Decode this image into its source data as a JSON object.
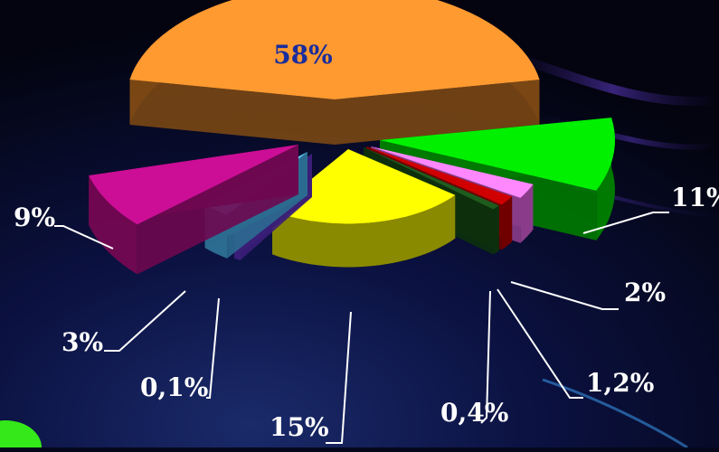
{
  "chart_data": {
    "type": "pie",
    "title": "",
    "three_d": true,
    "exploded": true,
    "label_style": "leader-lines",
    "slices": [
      {
        "label": "58%",
        "value": 58,
        "color": "#ff9a30",
        "side": "#7a4714"
      },
      {
        "label": "11%",
        "value": 11,
        "color": "#00f000",
        "side": "#007a00"
      },
      {
        "label": "2%",
        "value": 2,
        "color": "#ff88ff",
        "side": "#8a3c8a"
      },
      {
        "label": "1,2%",
        "value": 1.2,
        "color": "#d00000",
        "side": "#700000"
      },
      {
        "label": "0,4%",
        "value": 0.4,
        "color": "#1e5c1e",
        "side": "#0c300c"
      },
      {
        "label": "15%",
        "value": 15,
        "color": "#ffff00",
        "side": "#8a8a00"
      },
      {
        "label": "0,1%",
        "value": 0.1,
        "color": "#6a3cc8",
        "side": "#3a1e78"
      },
      {
        "label": "3%",
        "value": 3,
        "color": "#5ec8f5",
        "side": "#2c6c90"
      },
      {
        "label": "9%",
        "value": 9,
        "color": "#cc0e96",
        "side": "#6e0850"
      }
    ]
  }
}
